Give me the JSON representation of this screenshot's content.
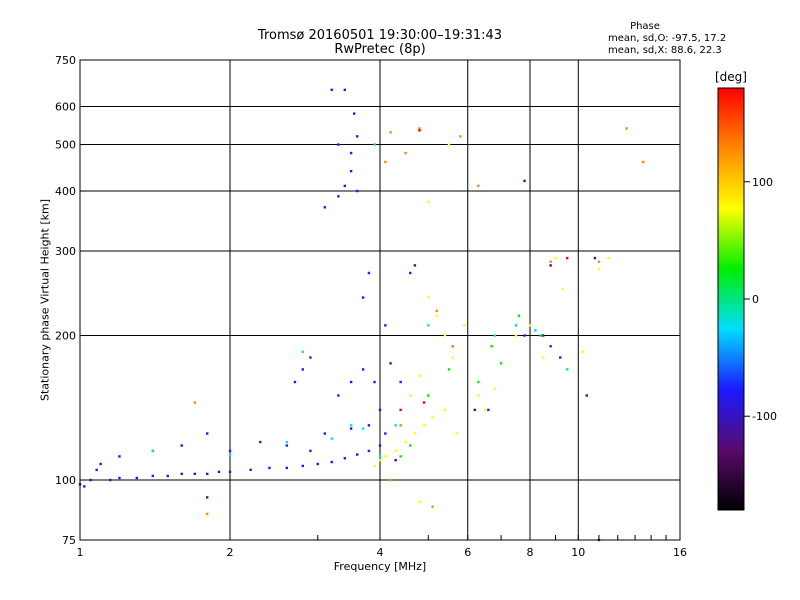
{
  "title_line1": "Tromsø 20160501 19:30:00–19:31:43",
  "title_line2": "RwPretec (8p)",
  "phase_panel": {
    "title": "Phase",
    "o_line": "mean, sd,O: -97.5, 17.2",
    "x_line": "mean, sd,X:  88.6, 22.3"
  },
  "colorbar": {
    "title": "[deg]",
    "ticks": [
      100,
      0,
      -100
    ],
    "range": [
      -180,
      180
    ],
    "colors": [
      "#000000",
      "#5a0a6e",
      "#1a1aff",
      "#00ddff",
      "#00ee00",
      "#ffff00",
      "#ff8800",
      "#ff0000"
    ]
  },
  "chart_data": {
    "type": "scatter",
    "xlabel": "Frequency [MHz]",
    "ylabel": "Stationary phase Virtual Height [km]",
    "x_scale": "log",
    "y_scale": "log",
    "xlim": [
      1,
      16
    ],
    "ylim": [
      75,
      750
    ],
    "x_ticks": [
      1,
      2,
      4,
      6,
      8,
      10,
      16
    ],
    "y_ticks": [
      75,
      100,
      200,
      300,
      400,
      500,
      600,
      750
    ],
    "x_grid": [
      2,
      4,
      6,
      8,
      10
    ],
    "y_grid": [
      100,
      200,
      300,
      400,
      500,
      600
    ],
    "series": [
      {
        "color": "#1a1aff",
        "points": [
          [
            1.0,
            98
          ],
          [
            1.02,
            97
          ],
          [
            1.05,
            100
          ],
          [
            1.08,
            105
          ],
          [
            1.1,
            108
          ],
          [
            1.15,
            100
          ],
          [
            1.2,
            101
          ],
          [
            1.3,
            101
          ],
          [
            1.4,
            102
          ],
          [
            1.5,
            102
          ],
          [
            1.6,
            103
          ],
          [
            1.7,
            103
          ],
          [
            1.8,
            103
          ],
          [
            1.9,
            104
          ],
          [
            2.0,
            104
          ],
          [
            2.2,
            105
          ],
          [
            2.4,
            106
          ],
          [
            2.6,
            106
          ],
          [
            2.8,
            107
          ],
          [
            3.0,
            108
          ],
          [
            3.2,
            109
          ],
          [
            3.4,
            111
          ],
          [
            3.6,
            113
          ],
          [
            3.8,
            115
          ],
          [
            4.0,
            118
          ],
          [
            1.2,
            112
          ],
          [
            1.4,
            115
          ],
          [
            1.6,
            118
          ],
          [
            1.8,
            125
          ],
          [
            2.0,
            115
          ],
          [
            2.3,
            120
          ],
          [
            2.6,
            118
          ],
          [
            2.9,
            115
          ],
          [
            3.1,
            125
          ],
          [
            3.5,
            128
          ],
          [
            3.8,
            130
          ],
          [
            4.1,
            125
          ],
          [
            2.7,
            160
          ],
          [
            2.8,
            170
          ],
          [
            2.9,
            180
          ],
          [
            3.3,
            150
          ],
          [
            3.5,
            160
          ],
          [
            3.7,
            170
          ],
          [
            3.9,
            160
          ],
          [
            4.0,
            140
          ],
          [
            4.1,
            210
          ],
          [
            4.2,
            175
          ],
          [
            4.4,
            160
          ],
          [
            3.1,
            370
          ],
          [
            3.3,
            390
          ],
          [
            3.4,
            410
          ],
          [
            3.5,
            440
          ],
          [
            3.5,
            480
          ],
          [
            3.6,
            520
          ],
          [
            3.55,
            580
          ],
          [
            3.2,
            650
          ],
          [
            3.4,
            650
          ],
          [
            3.3,
            500
          ],
          [
            3.6,
            400
          ],
          [
            3.8,
            270
          ],
          [
            3.7,
            240
          ],
          [
            4.6,
            270
          ],
          [
            5.6,
            190
          ],
          [
            6.6,
            140
          ],
          [
            7.8,
            200
          ],
          [
            8.5,
            200
          ],
          [
            8.8,
            190
          ],
          [
            9.2,
            180
          ],
          [
            10.4,
            150
          ]
        ]
      },
      {
        "color": "#00ddff",
        "points": [
          [
            1.4,
            115
          ],
          [
            2.0,
            113
          ],
          [
            2.6,
            120
          ],
          [
            3.2,
            122
          ],
          [
            3.7,
            128
          ],
          [
            4.0,
            112
          ],
          [
            4.3,
            130
          ],
          [
            2.8,
            185
          ],
          [
            3.9,
            500
          ],
          [
            5.0,
            210
          ],
          [
            6.8,
            200
          ],
          [
            7.5,
            210
          ],
          [
            8.2,
            205
          ],
          [
            9.5,
            170
          ],
          [
            3.5,
            130
          ]
        ]
      },
      {
        "color": "#00ee00",
        "points": [
          [
            4.4,
            112
          ],
          [
            4.6,
            118
          ],
          [
            5.0,
            150
          ],
          [
            5.5,
            170
          ],
          [
            6.3,
            160
          ],
          [
            7.0,
            175
          ],
          [
            7.6,
            220
          ],
          [
            8.4,
            200
          ],
          [
            6.7,
            190
          ]
        ]
      },
      {
        "color": "#ffff00",
        "points": [
          [
            3.9,
            107
          ],
          [
            4.0,
            110
          ],
          [
            4.1,
            112
          ],
          [
            4.3,
            115
          ],
          [
            4.5,
            120
          ],
          [
            4.7,
            125
          ],
          [
            4.9,
            130
          ],
          [
            5.1,
            135
          ],
          [
            5.4,
            140
          ],
          [
            5.7,
            125
          ],
          [
            5.0,
            240
          ],
          [
            5.2,
            220
          ],
          [
            5.4,
            200
          ],
          [
            5.6,
            180
          ],
          [
            5.9,
            210
          ],
          [
            6.3,
            150
          ],
          [
            6.5,
            140
          ],
          [
            6.8,
            155
          ],
          [
            7.5,
            200
          ],
          [
            8.0,
            210
          ],
          [
            8.5,
            180
          ],
          [
            9.0,
            290
          ],
          [
            9.3,
            250
          ],
          [
            10.2,
            185
          ],
          [
            11.0,
            275
          ],
          [
            11.5,
            290
          ],
          [
            5.0,
            380
          ],
          [
            5.5,
            500
          ],
          [
            4.8,
            90
          ],
          [
            4.6,
            150
          ],
          [
            4.8,
            165
          ]
        ]
      },
      {
        "color": "#ff8800",
        "points": [
          [
            4.8,
            540
          ],
          [
            4.5,
            480
          ],
          [
            4.2,
            530
          ],
          [
            4.1,
            460
          ],
          [
            5.8,
            520
          ],
          [
            13.5,
            460
          ],
          [
            12.5,
            540
          ],
          [
            11.0,
            285
          ],
          [
            8.8,
            285
          ],
          [
            5.6,
            190
          ],
          [
            4.2,
            100
          ],
          [
            1.8,
            85
          ],
          [
            1.7,
            145
          ],
          [
            5.1,
            88
          ],
          [
            6.3,
            410
          ],
          [
            5.2,
            225
          ],
          [
            4.4,
            130
          ]
        ]
      },
      {
        "color": "#ff0000",
        "points": [
          [
            4.8,
            535
          ],
          [
            4.4,
            140
          ],
          [
            4.9,
            145
          ],
          [
            9.5,
            290
          ]
        ]
      },
      {
        "color": "#5a0a6e",
        "points": [
          [
            7.8,
            420
          ],
          [
            11.0,
            75
          ],
          [
            8.8,
            280
          ],
          [
            10.8,
            290
          ],
          [
            6.2,
            140
          ],
          [
            4.3,
            110
          ],
          [
            4.7,
            280
          ],
          [
            1.8,
            92
          ]
        ]
      }
    ]
  }
}
